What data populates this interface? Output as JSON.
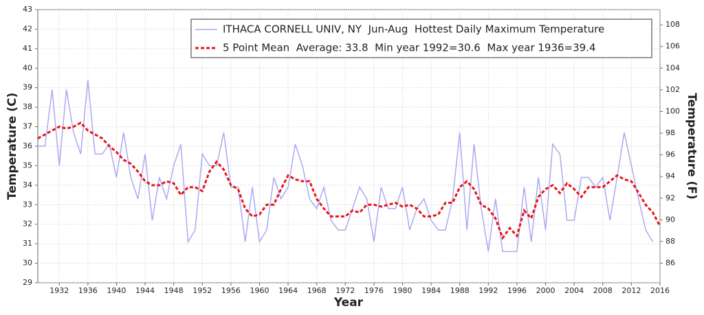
{
  "chart_data": {
    "type": "line",
    "xlabel": "Year",
    "ylabel": "Temperature (C)",
    "y2label": "Temperature (F)",
    "x": [
      1929,
      1930,
      1931,
      1932,
      1933,
      1934,
      1935,
      1936,
      1937,
      1938,
      1939,
      1940,
      1941,
      1942,
      1943,
      1944,
      1945,
      1946,
      1947,
      1948,
      1949,
      1950,
      1951,
      1952,
      1953,
      1954,
      1955,
      1956,
      1957,
      1958,
      1959,
      1960,
      1961,
      1962,
      1963,
      1964,
      1965,
      1966,
      1967,
      1968,
      1969,
      1970,
      1971,
      1972,
      1973,
      1974,
      1975,
      1976,
      1977,
      1978,
      1979,
      1980,
      1981,
      1982,
      1983,
      1984,
      1985,
      1986,
      1987,
      1988,
      1989,
      1990,
      1991,
      1992,
      1993,
      1994,
      1995,
      1996,
      1997,
      1998,
      1999,
      2000,
      2001,
      2002,
      2003,
      2004,
      2005,
      2006,
      2007,
      2008,
      2009,
      2010,
      2011,
      2012,
      2013,
      2014,
      2015,
      2016
    ],
    "series": [
      {
        "name": "ITHACA CORNELL UNIV, NY  Jun-Aug  Hottest Daily Maximum Temperature",
        "color": "#a9a9f2",
        "dashed": false,
        "values": [
          36.0,
          36.0,
          38.9,
          35.0,
          38.9,
          36.7,
          35.6,
          39.4,
          35.6,
          35.6,
          36.1,
          34.4,
          36.7,
          34.4,
          33.3,
          35.6,
          32.2,
          34.4,
          33.3,
          35.0,
          36.1,
          31.1,
          31.7,
          35.6,
          35.0,
          35.0,
          36.7,
          33.9,
          33.9,
          31.1,
          33.9,
          31.1,
          31.7,
          34.4,
          33.3,
          33.9,
          36.1,
          35.0,
          33.3,
          32.8,
          33.9,
          32.2,
          31.7,
          31.7,
          32.8,
          33.9,
          33.3,
          31.1,
          33.9,
          32.8,
          32.8,
          33.9,
          31.7,
          32.8,
          33.3,
          32.2,
          31.7,
          31.7,
          33.3,
          36.7,
          31.7,
          36.1,
          32.8,
          30.6,
          33.3,
          30.6,
          30.6,
          30.6,
          33.9,
          31.1,
          34.4,
          31.7,
          36.1,
          35.6,
          32.2,
          32.2,
          34.4,
          34.4,
          33.9,
          34.4,
          32.2,
          34.4,
          36.7,
          35.0,
          33.3,
          31.7,
          31.1,
          null
        ]
      },
      {
        "name": "5 Point Mean  Average: 33.8  Min year 1992=30.6  Max year 1936=39.4",
        "color": "#e8141a",
        "dashed": true,
        "values": [
          36.4,
          36.6,
          36.8,
          37.0,
          36.9,
          37.0,
          37.2,
          36.8,
          36.6,
          36.4,
          36.0,
          35.7,
          35.3,
          35.1,
          34.7,
          34.2,
          34.0,
          34.0,
          34.2,
          34.1,
          33.5,
          33.9,
          33.9,
          33.7,
          34.7,
          35.2,
          34.8,
          34.0,
          33.8,
          32.8,
          32.4,
          32.5,
          33.0,
          33.0,
          33.8,
          34.5,
          34.3,
          34.2,
          34.2,
          33.3,
          32.8,
          32.4,
          32.4,
          32.4,
          32.7,
          32.6,
          33.0,
          33.0,
          32.9,
          33.0,
          33.1,
          32.9,
          33.0,
          32.8,
          32.4,
          32.4,
          32.5,
          33.1,
          33.1,
          33.9,
          34.2,
          33.8,
          33.0,
          32.8,
          32.3,
          31.3,
          31.8,
          31.4,
          32.7,
          32.3,
          33.4,
          33.8,
          34.0,
          33.6,
          34.1,
          33.8,
          33.4,
          33.9,
          33.9,
          33.9,
          34.2,
          34.5,
          34.3,
          34.2,
          33.6,
          33.0,
          32.6,
          31.9
        ]
      }
    ],
    "xlim": [
      1929,
      2016
    ],
    "xticks": [
      1932,
      1936,
      1940,
      1944,
      1948,
      1952,
      1956,
      1960,
      1964,
      1968,
      1972,
      1976,
      1980,
      1984,
      1988,
      1992,
      1996,
      2000,
      2004,
      2008,
      2012,
      2016
    ],
    "ylim": [
      29,
      43
    ],
    "yticks": [
      29,
      30,
      31,
      32,
      33,
      34,
      35,
      36,
      37,
      38,
      39,
      40,
      41,
      42,
      43
    ],
    "y2lim": [
      84.2,
      109.4
    ],
    "y2ticks": [
      86,
      88,
      90,
      92,
      94,
      96,
      98,
      100,
      102,
      104,
      106,
      108
    ],
    "grid": true,
    "legend": "upper right"
  }
}
